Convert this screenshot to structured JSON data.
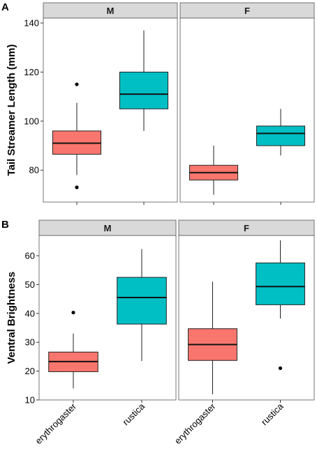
{
  "chart_data": [
    {
      "type": "boxplot",
      "panel_letter": "A",
      "ylabel": "Tail Streamer Length (mm)",
      "ylim": [
        67,
        142
      ],
      "yticks": [
        80,
        100,
        120,
        140
      ],
      "categories": [
        "erythrogaster",
        "rustica"
      ],
      "colors": {
        "erythrogaster": "#F8766D",
        "rustica": "#00BFC4"
      },
      "facets": [
        {
          "label": "M",
          "boxes": [
            {
              "category": "erythrogaster",
              "whisker_low": 78,
              "q1": 86.5,
              "median": 91,
              "q3": 96,
              "whisker_high": 107.5,
              "outliers": [
                73,
                115
              ]
            },
            {
              "category": "rustica",
              "whisker_low": 96,
              "q1": 105,
              "median": 111,
              "q3": 120,
              "whisker_high": 137,
              "outliers": []
            }
          ]
        },
        {
          "label": "F",
          "boxes": [
            {
              "category": "erythrogaster",
              "whisker_low": 70,
              "q1": 76,
              "median": 79,
              "q3": 82,
              "whisker_high": 90,
              "outliers": []
            },
            {
              "category": "rustica",
              "whisker_low": 86,
              "q1": 90,
              "median": 95,
              "q3": 98,
              "whisker_high": 105,
              "outliers": []
            }
          ]
        }
      ]
    },
    {
      "type": "boxplot",
      "panel_letter": "B",
      "ylabel": "Ventral Brightness",
      "ylim": [
        10,
        67
      ],
      "yticks": [
        10,
        20,
        30,
        40,
        50,
        60
      ],
      "categories": [
        "erythrogaster",
        "rustica"
      ],
      "colors": {
        "erythrogaster": "#F8766D",
        "rustica": "#00BFC4"
      },
      "facets": [
        {
          "label": "M",
          "boxes": [
            {
              "category": "erythrogaster",
              "whisker_low": 14,
              "q1": 19.8,
              "median": 23.3,
              "q3": 26.6,
              "whisker_high": 33,
              "outliers": [
                40.3
              ]
            },
            {
              "category": "rustica",
              "whisker_low": 23.5,
              "q1": 36.3,
              "median": 45.5,
              "q3": 52.5,
              "whisker_high": 62.3,
              "outliers": []
            }
          ]
        },
        {
          "label": "F",
          "boxes": [
            {
              "category": "erythrogaster",
              "whisker_low": 12,
              "q1": 23.7,
              "median": 29.2,
              "q3": 34.7,
              "whisker_high": 51,
              "outliers": []
            },
            {
              "category": "rustica",
              "whisker_low": 38.2,
              "q1": 43,
              "median": 49.3,
              "q3": 57.5,
              "whisker_high": 65.3,
              "outliers": [
                21
              ]
            }
          ]
        }
      ]
    }
  ]
}
